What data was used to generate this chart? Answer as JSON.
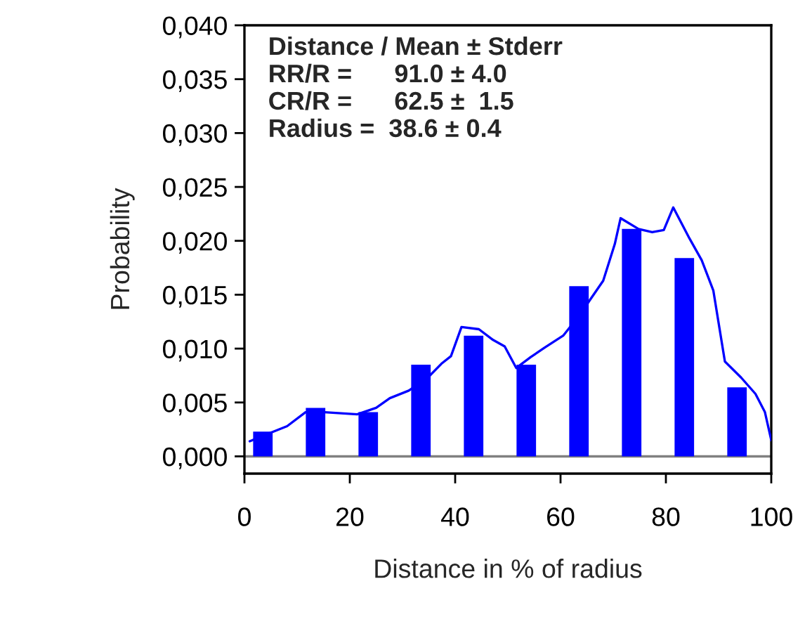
{
  "chart_data": {
    "type": "bar",
    "xlabel": "Distance in % of radius",
    "ylabel": "Probability",
    "x": [
      3.5,
      13.5,
      23.5,
      33.5,
      43.5,
      53.5,
      63.5,
      73.5,
      83.5,
      93.5
    ],
    "series": [
      {
        "color": "#0000ff",
        "values": [
          0.0023,
          0.0045,
          0.0041,
          0.0085,
          0.0112,
          0.0085,
          0.0158,
          0.0211,
          0.0184,
          0.0064
        ]
      },
      {
        "type": "line",
        "color": "#0000ff",
        "x": [
          1.0,
          4.5,
          8.1,
          11.6,
          15.2,
          21.4,
          25.0,
          27.6,
          31.2,
          34.8,
          37.4,
          39.2,
          41.2,
          44.5,
          47.2,
          49.4,
          51.6,
          54.3,
          57.0,
          60.5,
          62.3,
          65.0,
          68.1,
          70.3,
          71.4,
          74.8,
          77.4,
          79.6,
          81.4,
          84.5,
          86.8,
          89.0,
          91.2,
          94.3,
          97.0,
          98.8,
          100
        ],
        "values": [
          0.0014,
          0.0021,
          0.0028,
          0.0041,
          0.0041,
          0.0039,
          0.0045,
          0.0054,
          0.0061,
          0.0073,
          0.0086,
          0.0093,
          0.012,
          0.0118,
          0.0108,
          0.0102,
          0.0082,
          0.0092,
          0.0101,
          0.0112,
          0.0123,
          0.0141,
          0.0163,
          0.0197,
          0.0221,
          0.0211,
          0.0208,
          0.021,
          0.0231,
          0.0202,
          0.0182,
          0.0154,
          0.0088,
          0.0073,
          0.0058,
          0.0041,
          0.0015
        ]
      }
    ],
    "xlim": [
      0,
      100
    ],
    "xticks": [
      0,
      20,
      40,
      60,
      80,
      100
    ],
    "ylim": [
      -0.0016,
      0.04
    ],
    "yticks": [
      {
        "value": 0,
        "label": "0,000"
      },
      {
        "value": 0.005,
        "label": "0,005"
      },
      {
        "value": 0.01,
        "label": "0,010"
      },
      {
        "value": 0.015,
        "label": "0,015"
      },
      {
        "value": 0.02,
        "label": "0,020"
      },
      {
        "value": 0.025,
        "label": "0,025"
      },
      {
        "value": 0.03,
        "label": "0,030"
      },
      {
        "value": 0.035,
        "label": "0,035"
      },
      {
        "value": 0.04,
        "label": "0,040"
      }
    ],
    "ref_lines": [
      {
        "axis": "y",
        "value": 0,
        "color": "#808080"
      }
    ],
    "annotations": [
      "Distance / Mean ± Stderr\nRR/R =      91.0 ± 4.0\nCR/R =      62.5 ±  1.5\nRadius =  38.6 ± 0.4"
    ],
    "grid": false,
    "legend": false
  }
}
